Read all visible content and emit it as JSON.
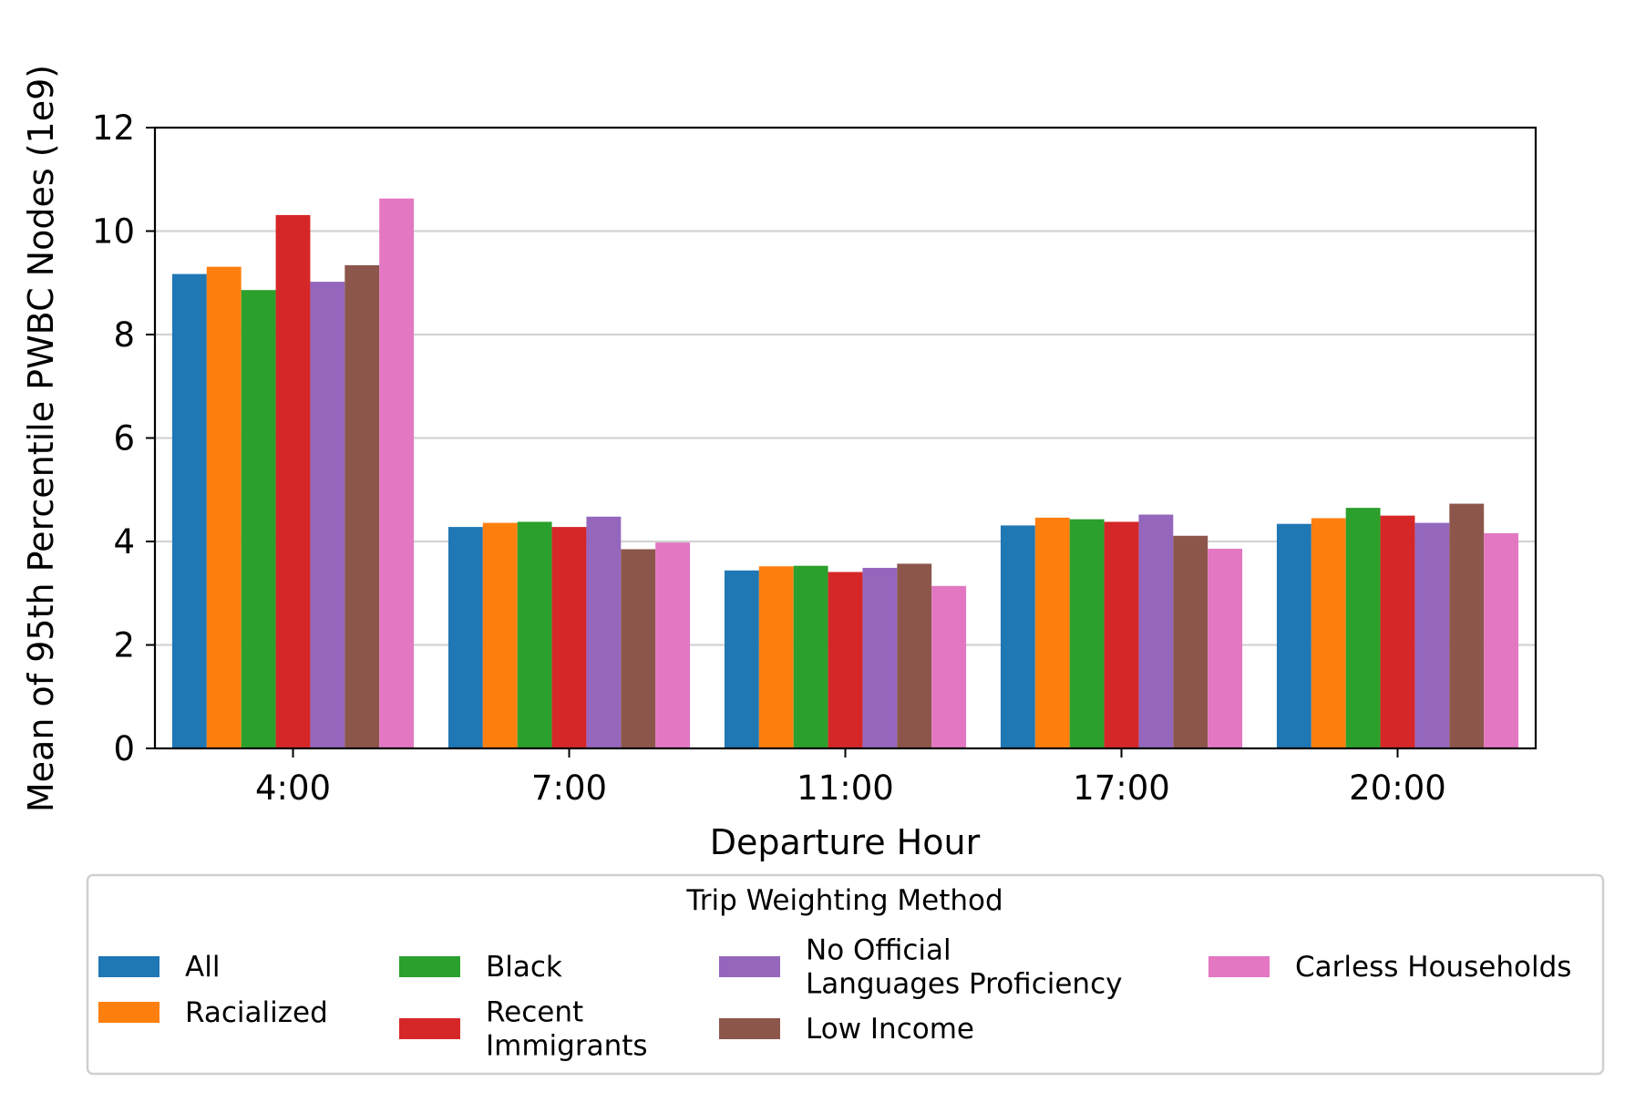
{
  "chart_data": {
    "type": "bar",
    "title": "",
    "xlabel": "Departure Hour",
    "ylabel": "Mean of 95th Percentile PWBC Nodes (1e9)",
    "ylim": [
      0,
      12
    ],
    "yticks": [
      0,
      2,
      4,
      6,
      8,
      10,
      12
    ],
    "grid": "y",
    "categories": [
      "4:00",
      "7:00",
      "11:00",
      "17:00",
      "20:00"
    ],
    "series": [
      {
        "name": "All",
        "color": "#1f77b4",
        "values": [
          9.17,
          4.28,
          3.44,
          4.31,
          4.34
        ]
      },
      {
        "name": "Racialized",
        "color": "#ff7f0e",
        "values": [
          9.31,
          4.36,
          3.52,
          4.46,
          4.45
        ]
      },
      {
        "name": "Black",
        "color": "#2ca02c",
        "values": [
          8.86,
          4.38,
          3.53,
          4.43,
          4.65
        ]
      },
      {
        "name": "Recent\nImmigrants",
        "color": "#d62728",
        "values": [
          10.31,
          4.28,
          3.41,
          4.38,
          4.5
        ]
      },
      {
        "name": "No Official\nLanguages Proficiency",
        "color": "#9467bd",
        "values": [
          9.02,
          4.48,
          3.49,
          4.52,
          4.36
        ]
      },
      {
        "name": "Low Income",
        "color": "#8c564b",
        "values": [
          9.34,
          3.85,
          3.57,
          4.11,
          4.73
        ]
      },
      {
        "name": "Carless Households",
        "color": "#e377c2",
        "values": [
          10.63,
          3.98,
          3.14,
          3.86,
          4.16
        ]
      }
    ],
    "legend": {
      "title": "Trip Weighting Method",
      "placement": "bottom",
      "columns": 4
    }
  }
}
